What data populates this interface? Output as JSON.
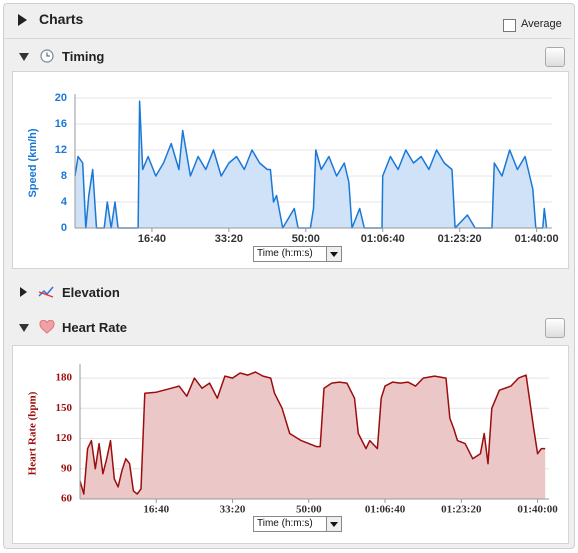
{
  "header": {
    "title": "Charts",
    "average_label": "Average"
  },
  "sections": [
    {
      "title": "Timing"
    },
    {
      "title": "Elevation"
    },
    {
      "title": "Heart Rate"
    }
  ],
  "chart_data": [
    {
      "type": "area",
      "y_label": "Speed (km/h)",
      "x_selector": "Time (h:m:s)",
      "color": "#1a78d6",
      "fill": "#cfe2f7",
      "label_color": "#1a78d6",
      "grid": true,
      "xlim": [
        0,
        6200
      ],
      "ylim": [
        0,
        20
      ],
      "yticks": [
        0,
        4,
        8,
        12,
        16,
        20
      ],
      "xticks": [
        {
          "value": 1000,
          "label": "16:40"
        },
        {
          "value": 2000,
          "label": "33:20"
        },
        {
          "value": 3000,
          "label": "50:00"
        },
        {
          "value": 4000,
          "label": "01:06:40"
        },
        {
          "value": 5000,
          "label": "01:23:20"
        },
        {
          "value": 6000,
          "label": "01:40:00"
        }
      ],
      "x": [
        0,
        40,
        100,
        140,
        180,
        230,
        280,
        380,
        420,
        470,
        520,
        560,
        820,
        840,
        880,
        950,
        1050,
        1150,
        1250,
        1350,
        1400,
        1500,
        1600,
        1700,
        1800,
        1900,
        2000,
        2100,
        2200,
        2300,
        2400,
        2500,
        2540,
        2580,
        2620,
        2700,
        2850,
        2900,
        3060,
        3100,
        3130,
        3200,
        3300,
        3400,
        3500,
        3560,
        3600,
        3700,
        3760,
        3990,
        4000,
        4100,
        4200,
        4300,
        4400,
        4500,
        4600,
        4700,
        4800,
        4900,
        4940,
        5100,
        5200,
        5420,
        5450,
        5550,
        5650,
        5750,
        5850,
        5950,
        5990,
        6080,
        6100,
        6130
      ],
      "values": [
        8,
        11,
        10,
        0,
        5,
        9,
        0,
        0,
        4,
        0,
        4,
        0,
        0,
        19.5,
        9,
        11,
        8,
        10,
        13,
        9,
        15,
        8,
        11,
        9,
        12,
        8,
        10,
        11,
        9,
        12,
        10,
        9,
        9,
        4,
        5,
        0,
        3,
        0,
        0,
        3,
        12,
        9,
        11,
        8,
        10,
        7,
        0,
        3,
        0,
        0,
        8,
        11,
        9,
        12,
        10,
        11,
        9,
        12,
        10,
        9,
        0,
        2,
        0,
        0,
        10,
        8,
        12,
        9,
        11,
        6,
        0,
        0,
        3,
        0
      ]
    },
    {
      "type": "area",
      "y_label": "Heart Rate (bpm)",
      "x_selector": "Time (h:m:s)",
      "color": "#9c0d0d",
      "fill": "#ebc7c7",
      "label_color": "#9c0d0d",
      "grid": true,
      "xlim": [
        0,
        6150
      ],
      "ylim": [
        60,
        190
      ],
      "yticks": [
        60,
        90,
        120,
        150,
        180
      ],
      "xticks": [
        {
          "value": 1000,
          "label": "16:40"
        },
        {
          "value": 2000,
          "label": "33:20"
        },
        {
          "value": 3000,
          "label": "50:00"
        },
        {
          "value": 4000,
          "label": "01:06:40"
        },
        {
          "value": 5000,
          "label": "01:23:20"
        },
        {
          "value": 6000,
          "label": "01:40:00"
        }
      ],
      "x": [
        0,
        50,
        100,
        150,
        200,
        250,
        300,
        350,
        400,
        450,
        500,
        550,
        600,
        650,
        700,
        750,
        800,
        850,
        1000,
        1200,
        1300,
        1400,
        1500,
        1600,
        1700,
        1800,
        1900,
        2000,
        2100,
        2200,
        2300,
        2400,
        2500,
        2550,
        2650,
        2750,
        2900,
        3000,
        3100,
        3150,
        3200,
        3300,
        3400,
        3500,
        3600,
        3650,
        3750,
        3800,
        3900,
        3950,
        4000,
        4100,
        4200,
        4300,
        4400,
        4500,
        4650,
        4800,
        4850,
        4900,
        4950,
        5050,
        5150,
        5250,
        5300,
        5350,
        5400,
        5500,
        5650,
        5750,
        5850,
        5950,
        6000,
        6050,
        6100
      ],
      "values": [
        78,
        65,
        110,
        118,
        90,
        115,
        85,
        100,
        118,
        80,
        72,
        88,
        100,
        95,
        68,
        65,
        70,
        165,
        166,
        170,
        172,
        162,
        180,
        170,
        175,
        160,
        182,
        180,
        185,
        183,
        186,
        182,
        180,
        165,
        150,
        125,
        118,
        115,
        112,
        112,
        170,
        175,
        176,
        175,
        160,
        125,
        110,
        118,
        110,
        160,
        172,
        176,
        175,
        176,
        172,
        180,
        182,
        180,
        140,
        130,
        118,
        115,
        100,
        105,
        125,
        95,
        150,
        168,
        172,
        180,
        183,
        130,
        105,
        110,
        110
      ]
    }
  ]
}
